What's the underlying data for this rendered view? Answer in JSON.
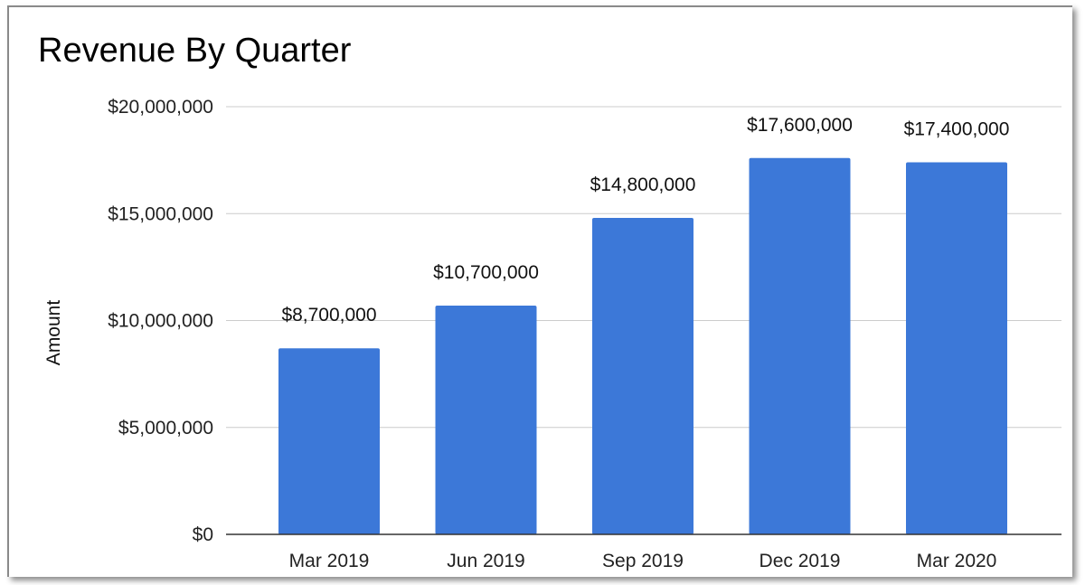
{
  "chart_data": {
    "type": "bar",
    "title": "Revenue By Quarter",
    "xlabel": "",
    "ylabel": "Amount",
    "categories": [
      "Mar 2019",
      "Jun 2019",
      "Sep 2019",
      "Dec 2019",
      "Mar 2020"
    ],
    "values": [
      8700000,
      10700000,
      14800000,
      17600000,
      17400000
    ],
    "data_labels": [
      "$8,700,000",
      "$10,700,000",
      "$14,800,000",
      "$17,600,000",
      "$17,400,000"
    ],
    "y_ticks": [
      0,
      5000000,
      10000000,
      15000000,
      20000000
    ],
    "y_tick_labels": [
      "$0",
      "$5,000,000",
      "$10,000,000",
      "$15,000,000",
      "$20,000,000"
    ],
    "ylim": [
      0,
      20000000
    ],
    "grid": true,
    "legend": "none",
    "colors": {
      "bar": "#3c78d8",
      "grid": "#cccccc",
      "axis": "#333333"
    }
  }
}
